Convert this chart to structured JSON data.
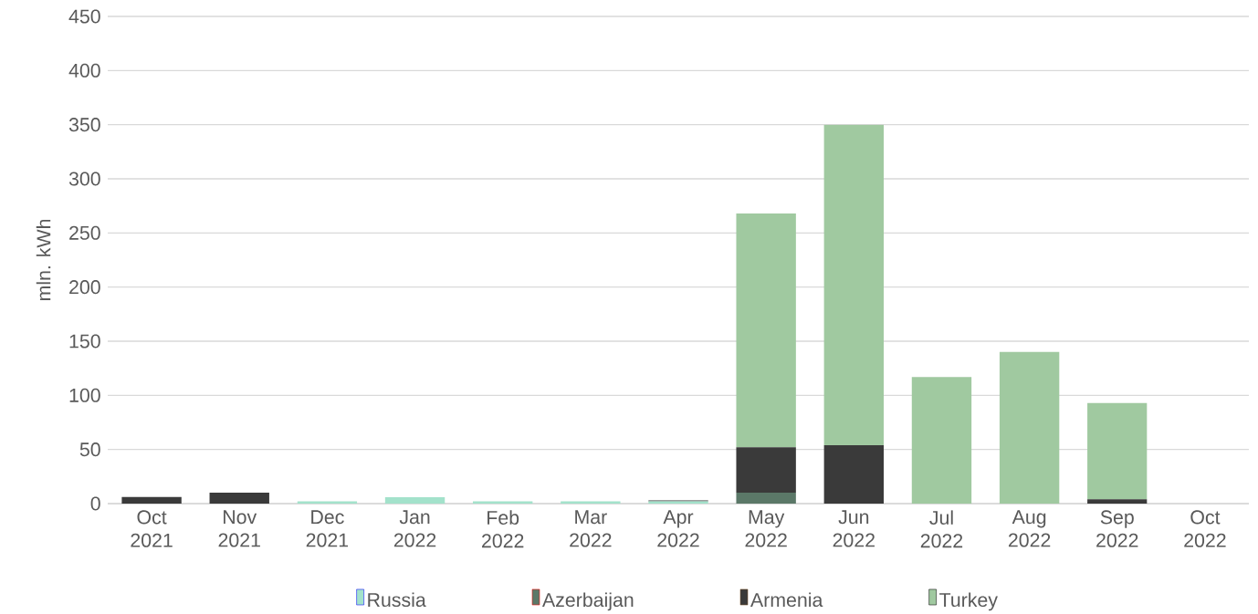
{
  "chart_data": {
    "type": "bar",
    "stacked": true,
    "ylabel": "mln. kWh",
    "categories": [
      "Oct 2021",
      "Nov 2021",
      "Dec 2021",
      "Jan 2022",
      "Feb 2022",
      "Mar 2022",
      "Apr 2022",
      "May 2022",
      "Jun 2022",
      "Jul 2022",
      "Aug 2022",
      "Sep 2022",
      "Oct 2022"
    ],
    "series": [
      {
        "name": "Russia",
        "color": "#a3e2cb",
        "values": [
          null,
          null,
          2,
          6,
          2,
          2,
          2,
          null,
          null,
          null,
          null,
          null,
          null
        ]
      },
      {
        "name": "Azerbaijan",
        "color": "#5b7868",
        "values": [
          null,
          null,
          null,
          null,
          null,
          null,
          null,
          10,
          null,
          null,
          null,
          null,
          null
        ]
      },
      {
        "name": "Armenia",
        "color": "#3a3a3a",
        "values": [
          6,
          10,
          null,
          null,
          null,
          null,
          1,
          42,
          54,
          null,
          null,
          4,
          null
        ]
      },
      {
        "name": "Turkey",
        "color": "#a0c9a0",
        "values": [
          null,
          null,
          null,
          null,
          null,
          null,
          null,
          216,
          296,
          117,
          140,
          89,
          null
        ]
      }
    ],
    "ylim": [
      0,
      450
    ],
    "yticks": [
      0,
      50,
      100,
      150,
      200,
      250,
      300,
      350,
      400,
      450
    ],
    "grid": "y",
    "legend": "bottom"
  }
}
